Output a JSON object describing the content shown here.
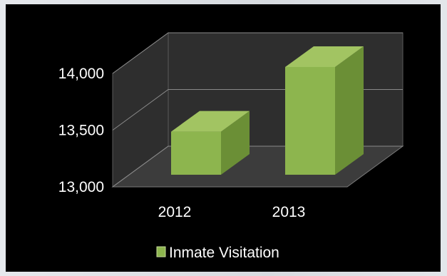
{
  "chart_data": {
    "type": "bar",
    "title": "",
    "xlabel": "",
    "ylabel": "",
    "categories": [
      "2012",
      "2013"
    ],
    "series": [
      {
        "name": "Inmate Visitation",
        "values": [
          13380,
          13950
        ],
        "color": "#8db54e"
      }
    ],
    "ylim": [
      13000,
      14000
    ],
    "yticks": [
      13000,
      13500,
      14000
    ],
    "ytick_labels": [
      "13,000",
      "13,500",
      "14,000"
    ],
    "grid": true,
    "three_d": true,
    "legend": "bottom",
    "colors": {
      "background": "#000000",
      "wall": "#2e2e2e",
      "floor": "#3c3c3c",
      "bar_front": "#8db54e",
      "bar_side": "#6b8f36",
      "bar_top": "#a2c462",
      "text": "#ffffff"
    }
  }
}
